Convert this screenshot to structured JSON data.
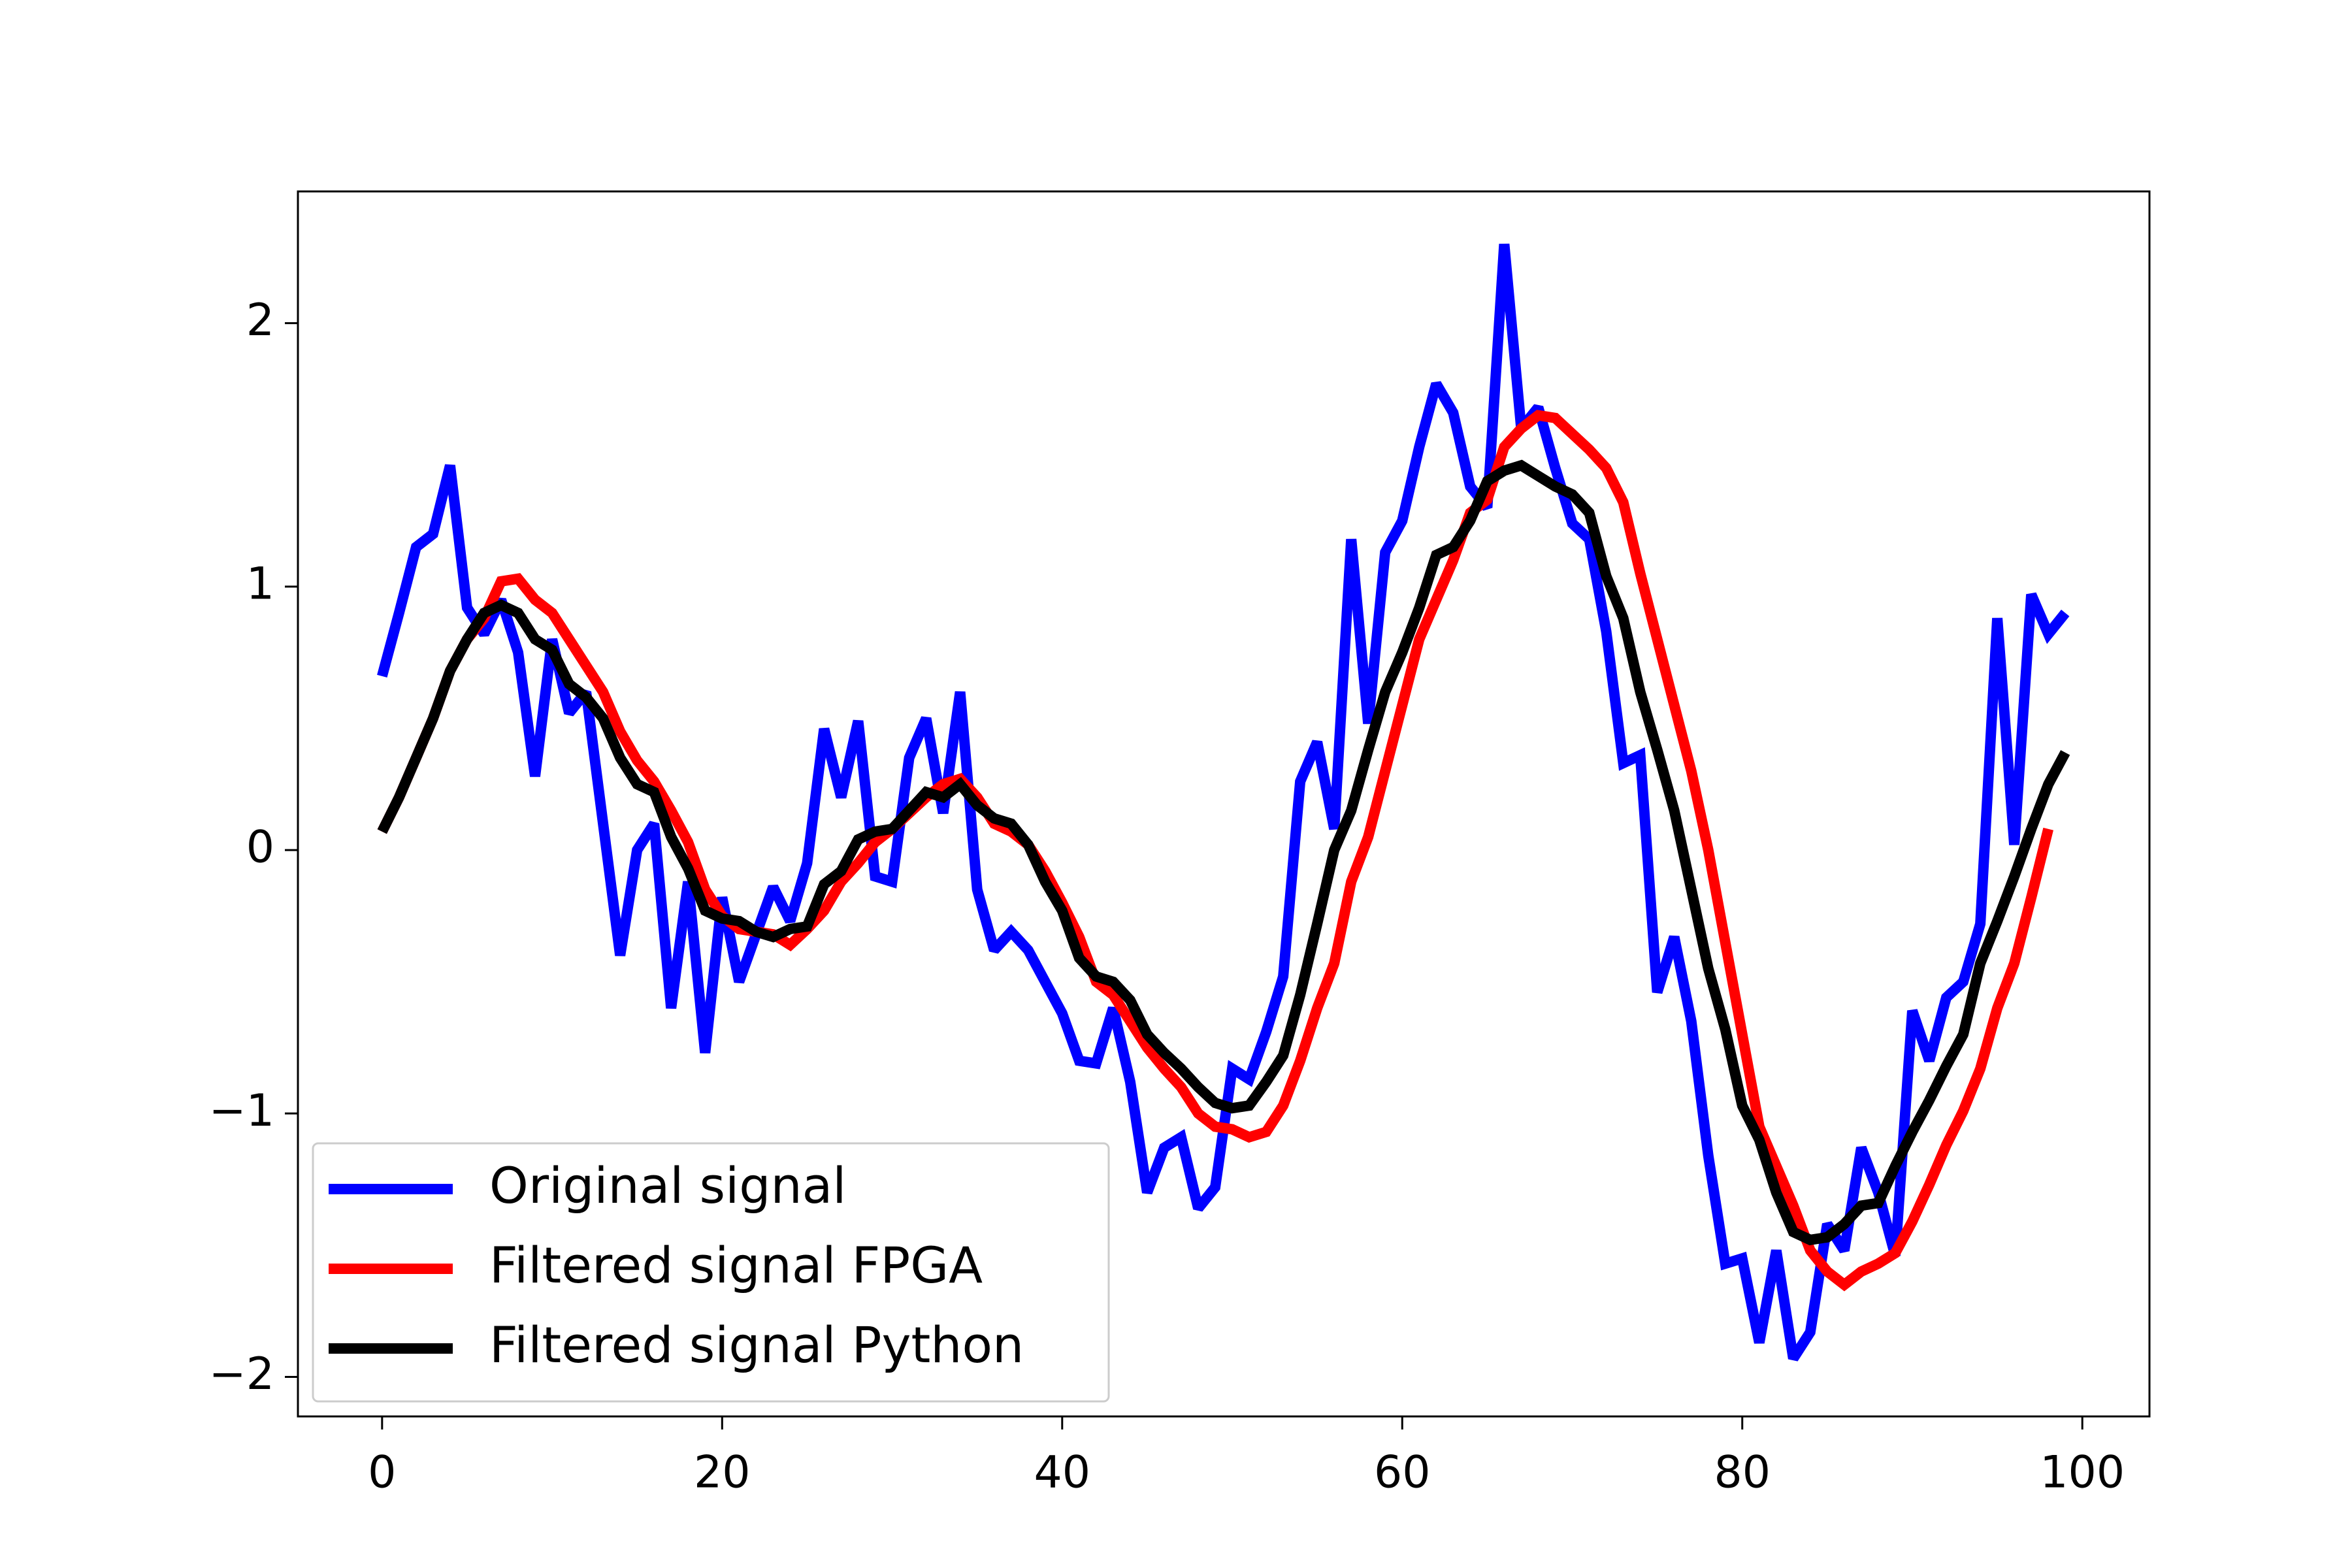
{
  "chart_data": {
    "type": "line",
    "x": [
      0,
      1,
      2,
      3,
      4,
      5,
      6,
      7,
      8,
      9,
      10,
      11,
      12,
      13,
      14,
      15,
      16,
      17,
      18,
      19,
      20,
      21,
      22,
      23,
      24,
      25,
      26,
      27,
      28,
      29,
      30,
      31,
      32,
      33,
      34,
      35,
      36,
      37,
      38,
      39,
      40,
      41,
      42,
      43,
      44,
      45,
      46,
      47,
      48,
      49,
      50,
      51,
      52,
      53,
      54,
      55,
      56,
      57,
      58,
      59,
      60,
      61,
      62,
      63,
      64,
      65,
      66,
      67,
      68,
      69,
      70,
      71,
      72,
      73,
      74,
      75,
      76,
      77,
      78,
      79,
      80,
      81,
      82,
      83,
      84,
      85,
      86,
      87,
      88,
      89,
      90,
      91,
      92,
      93,
      94,
      95,
      96,
      97,
      98,
      99
    ],
    "series": [
      {
        "name": "Original signal",
        "color": "#0000ff",
        "values": [
          0.66,
          0.9,
          1.15,
          1.2,
          1.46,
          0.92,
          0.82,
          0.95,
          0.75,
          0.28,
          0.8,
          0.52,
          0.6,
          0.1,
          -0.4,
          0.0,
          0.1,
          -0.6,
          -0.12,
          -0.77,
          -0.18,
          -0.5,
          -0.32,
          -0.14,
          -0.27,
          -0.05,
          0.46,
          0.2,
          0.49,
          -0.1,
          -0.12,
          0.35,
          0.5,
          0.14,
          0.6,
          -0.15,
          -0.38,
          -0.31,
          -0.38,
          -0.5,
          -0.62,
          -0.8,
          -0.81,
          -0.6,
          -0.88,
          -1.3,
          -1.13,
          -1.09,
          -1.36,
          -1.28,
          -0.83,
          -0.87,
          -0.69,
          -0.48,
          0.26,
          0.41,
          0.08,
          1.18,
          0.48,
          1.13,
          1.25,
          1.53,
          1.77,
          1.66,
          1.38,
          1.3,
          2.3,
          1.6,
          1.68,
          1.45,
          1.24,
          1.18,
          0.83,
          0.33,
          0.36,
          -0.54,
          -0.33,
          -0.65,
          -1.16,
          -1.57,
          -1.55,
          -1.87,
          -1.52,
          -1.93,
          -1.83,
          -1.42,
          -1.52,
          -1.13,
          -1.3,
          -1.54,
          -0.61,
          -0.8,
          -0.56,
          -0.5,
          -0.28,
          0.88,
          0.02,
          0.97,
          0.82,
          0.9
        ]
      },
      {
        "name": "Filtered signal FPGA",
        "color": "#ff0000",
        "values": [
          0.07,
          0.2,
          0.35,
          0.5,
          0.68,
          0.8,
          0.88,
          1.02,
          1.03,
          0.95,
          0.9,
          0.8,
          0.7,
          0.6,
          0.45,
          0.34,
          0.26,
          0.15,
          0.03,
          -0.15,
          -0.25,
          -0.3,
          -0.31,
          -0.32,
          -0.36,
          -0.3,
          -0.23,
          -0.12,
          -0.05,
          0.03,
          0.08,
          0.14,
          0.2,
          0.25,
          0.27,
          0.2,
          0.1,
          0.07,
          0.02,
          -0.08,
          -0.2,
          -0.33,
          -0.5,
          -0.55,
          -0.65,
          -0.75,
          -0.83,
          -0.9,
          -1.0,
          -1.05,
          -1.06,
          -1.09,
          -1.07,
          -0.97,
          -0.8,
          -0.6,
          -0.43,
          -0.12,
          0.05,
          0.3,
          0.55,
          0.8,
          0.95,
          1.1,
          1.28,
          1.33,
          1.53,
          1.6,
          1.65,
          1.64,
          1.58,
          1.52,
          1.45,
          1.32,
          1.05,
          0.8,
          0.55,
          0.3,
          0.0,
          -0.35,
          -0.7,
          -1.05,
          -1.2,
          -1.35,
          -1.52,
          -1.6,
          -1.65,
          -1.6,
          -1.57,
          -1.53,
          -1.41,
          -1.27,
          -1.12,
          -0.99,
          -0.83,
          -0.6,
          -0.43,
          -0.18,
          0.08,
          null
        ]
      },
      {
        "name": "Filtered signal Python",
        "color": "#000000",
        "values": [
          0.07,
          0.2,
          0.35,
          0.5,
          0.68,
          0.8,
          0.9,
          0.93,
          0.9,
          0.8,
          0.76,
          0.63,
          0.58,
          0.5,
          0.35,
          0.25,
          0.22,
          0.05,
          -0.07,
          -0.23,
          -0.26,
          -0.27,
          -0.31,
          -0.33,
          -0.3,
          -0.29,
          -0.13,
          -0.08,
          0.04,
          0.07,
          0.08,
          0.15,
          0.22,
          0.2,
          0.25,
          0.17,
          0.12,
          0.1,
          0.02,
          -0.12,
          -0.23,
          -0.41,
          -0.48,
          -0.5,
          -0.57,
          -0.7,
          -0.77,
          -0.83,
          -0.9,
          -0.96,
          -0.98,
          -0.97,
          -0.88,
          -0.78,
          -0.55,
          -0.28,
          0.0,
          0.15,
          0.38,
          0.6,
          0.75,
          0.92,
          1.12,
          1.15,
          1.25,
          1.4,
          1.44,
          1.46,
          1.42,
          1.38,
          1.35,
          1.28,
          1.04,
          0.88,
          0.6,
          0.38,
          0.15,
          -0.15,
          -0.45,
          -0.68,
          -0.97,
          -1.1,
          -1.3,
          -1.45,
          -1.48,
          -1.47,
          -1.42,
          -1.35,
          -1.34,
          -1.2,
          -1.07,
          -0.95,
          -0.82,
          -0.7,
          -0.43,
          -0.27,
          -0.1,
          0.08,
          0.25,
          0.37
        ]
      }
    ],
    "xlim": [
      -4.95,
      103.95
    ],
    "xticks": [
      0,
      20,
      40,
      60,
      80,
      100
    ],
    "ylim": [
      -2.15,
      2.5
    ],
    "yticks": [
      {
        "value": -2,
        "label": "−2"
      },
      {
        "value": -1,
        "label": "−1"
      },
      0,
      1,
      2
    ],
    "legend": "lower left",
    "grid": false
  }
}
